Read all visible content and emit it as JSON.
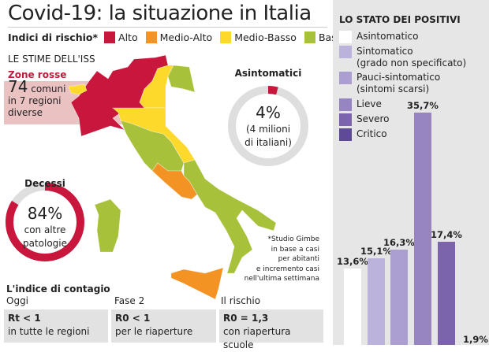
{
  "title": "Covid-19: la situazione in Italia",
  "legend": {
    "label": "Indici di rischio*",
    "items": [
      {
        "label": "Alto",
        "color": "#c8163c"
      },
      {
        "label": "Medio-Alto",
        "color": "#f39324"
      },
      {
        "label": "Medio-Basso",
        "color": "#fcd92b"
      },
      {
        "label": "Basso",
        "color": "#a7c13a"
      }
    ]
  },
  "iss": {
    "heading": "LE STIME DELL'ISS",
    "zone_title": "Zone rosse",
    "zone_number": "74",
    "zone_text1": " comuni",
    "zone_text2": "in 7 regioni",
    "zone_text3": "diverse"
  },
  "asintomatici": {
    "title": "Asintomatici",
    "pct": "4%",
    "line1": "(4 milioni",
    "line2": "di italiani)",
    "value": 4
  },
  "decessi": {
    "title": "Decessi",
    "pct": "84%",
    "line1": "con altre",
    "line2": "patologie",
    "value": 84
  },
  "note": [
    "*Studio Gimbe",
    "in base a casi",
    "per abitanti",
    "e incremento casi",
    "nell'ultima settimana"
  ],
  "contagio": {
    "title": "L'indice di contagio",
    "cols": [
      {
        "label": "Oggi",
        "value": "Rt < 1",
        "desc": "in tutte le regioni"
      },
      {
        "label": "Fase 2",
        "value": "R0 < 1",
        "desc": "per le riaperture"
      },
      {
        "label": "Il rischio",
        "value": "R0 = 1,3",
        "desc": "con riapertura scuole"
      }
    ]
  },
  "chart_data": {
    "type": "bar",
    "title": "LO STATO DEI POSITIVI",
    "categories": [
      "Asintomatico",
      "Sintomatico (grado non specificato)",
      "Pauci-sintomatico (sintomi scarsi)",
      "Lieve",
      "Severo",
      "Critico"
    ],
    "legend_lines": [
      [
        "Asintomatico"
      ],
      [
        "Sintomatico",
        "(grado non specificato)"
      ],
      [
        "Pauci-sintomatico",
        "(sintomi scarsi)"
      ],
      [
        "Lieve"
      ],
      [
        "Severo"
      ],
      [
        "Critico"
      ]
    ],
    "values": [
      13.6,
      15.1,
      16.3,
      35.7,
      17.4,
      1.9
    ],
    "labels": [
      "13,6%",
      "15,1%",
      "16,3%",
      "35,7%",
      "17,4%",
      "1,9%"
    ],
    "colors": [
      "#ffffff",
      "#bcb3dc",
      "#aa9fd0",
      "#9685c0",
      "#7b64ab",
      "#5f4a98"
    ],
    "unit": "%"
  }
}
